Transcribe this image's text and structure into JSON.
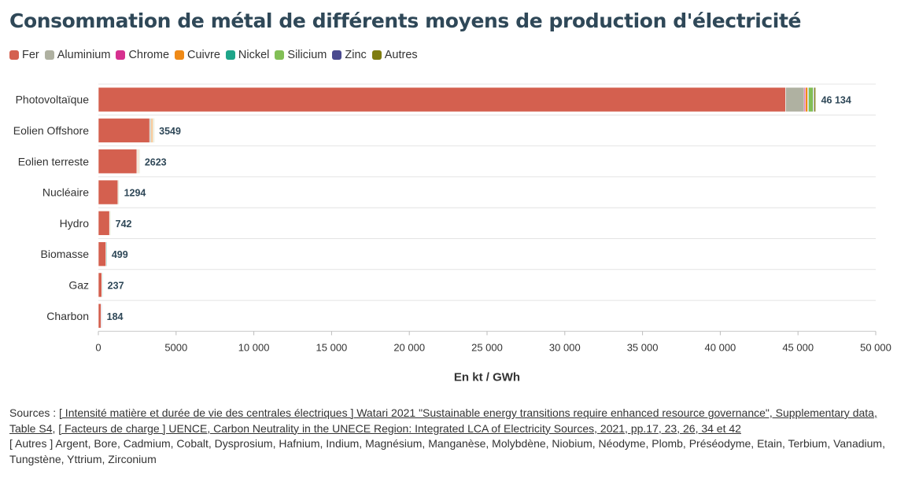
{
  "title": "Consommation de métal de différents moyens de production d'électricité",
  "chart_data": {
    "type": "bar",
    "orientation": "horizontal",
    "stacked": true,
    "categories": [
      "Photovoltaïque",
      "Eolien Offshore",
      "Eolien terreste",
      "Nucléaire",
      "Hydro",
      "Biomasse",
      "Gaz",
      "Charbon"
    ],
    "series": [
      {
        "name": "Fer",
        "color": "#d4604f",
        "values": [
          44200,
          3300,
          2480,
          1260,
          720,
          490,
          230,
          180
        ]
      },
      {
        "name": "Aluminium",
        "color": "#afb1a1",
        "values": [
          1200,
          80,
          40,
          10,
          8,
          5,
          3,
          2
        ]
      },
      {
        "name": "Chrome",
        "color": "#d6308f",
        "values": [
          80,
          30,
          20,
          5,
          2,
          1,
          1,
          0
        ]
      },
      {
        "name": "Cuivre",
        "color": "#ef8a17",
        "values": [
          150,
          80,
          50,
          10,
          5,
          2,
          2,
          1
        ]
      },
      {
        "name": "Nickel",
        "color": "#1ea589",
        "values": [
          50,
          20,
          10,
          3,
          2,
          1,
          1,
          0
        ]
      },
      {
        "name": "Silicium",
        "color": "#82bf56",
        "values": [
          300,
          5,
          3,
          1,
          1,
          0,
          0,
          0
        ]
      },
      {
        "name": "Zinc",
        "color": "#4a4a8f",
        "values": [
          54,
          14,
          10,
          3,
          2,
          0,
          0,
          1
        ]
      },
      {
        "name": "Autres",
        "color": "#7f7d10",
        "values": [
          100,
          20,
          10,
          2,
          2,
          0,
          0,
          0
        ]
      }
    ],
    "totals_labels": [
      "46 134",
      "3549",
      "2623",
      "1294",
      "742",
      "499",
      "237",
      "184"
    ],
    "totals": [
      46134,
      3549,
      2623,
      1294,
      742,
      499,
      237,
      184
    ],
    "xlim": [
      0,
      50000
    ],
    "x_ticks": [
      0,
      5000,
      10000,
      15000,
      20000,
      25000,
      30000,
      35000,
      40000,
      45000,
      50000
    ],
    "x_tick_labels": [
      "0",
      "5000",
      "10 000",
      "15 000",
      "20 000",
      "25 000",
      "30 000",
      "35 000",
      "40 000",
      "45 000",
      "50 000"
    ],
    "xlabel": "En kt / GWh",
    "ylabel": "",
    "grid": true,
    "legend_position": "top-left"
  },
  "sources": {
    "prefix": "Sources : ",
    "link1": "[ Intensité matière et durée de vie des centrales électriques ] Watari 2021 \"Sustainable energy transitions require enhanced resource governance\", Supplementary data, Table S4",
    "sep": ", ",
    "link2": "[ Facteurs de charge ] UENCE, Carbon Neutrality in the UNECE Region: Integrated LCA of Electricity Sources, 2021, pp.17, 23, 26, 34 et 42",
    "others": "[ Autres ] Argent, Bore, Cadmium, Cobalt, Dysprosium, Hafnium, Indium, Magnésium, Manganèse, Molybdène, Niobium, Néodyme, Plomb, Préséodyme, Etain, Terbium, Vanadium, Tungstène, Yttrium, Zirconium"
  }
}
